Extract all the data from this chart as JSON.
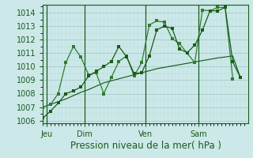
{
  "background_color": "#cce8e8",
  "grid_color_major": "#aacccc",
  "grid_color_minor": "#bbdddd",
  "line_color_dark": "#1a5c1a",
  "line_color_mid": "#2e7d32",
  "xlabel": "Pression niveau de la mer( hPa )",
  "xlabel_fontsize": 8.5,
  "ylim": [
    1005.8,
    1014.6
  ],
  "yticks": [
    1006,
    1007,
    1008,
    1009,
    1010,
    1011,
    1012,
    1013,
    1014
  ],
  "ytick_fontsize": 7,
  "xtick_labels": [
    "Jeu",
    "Dim",
    "Ven",
    "Sam"
  ],
  "xtick_positions": [
    0.5,
    5.5,
    13.5,
    20.5
  ],
  "vline_positions": [
    0.5,
    5.5,
    13.5,
    20.5
  ],
  "xlim": [
    0,
    27
  ],
  "series_smooth_x": [
    0,
    1,
    2,
    3,
    4,
    5,
    6,
    7,
    8,
    9,
    10,
    11,
    12,
    13,
    14,
    15,
    16,
    17,
    18,
    19,
    20,
    21,
    22,
    23,
    24,
    25,
    26
  ],
  "series_smooth_y": [
    1007.0,
    1007.2,
    1007.4,
    1007.6,
    1007.85,
    1008.1,
    1008.3,
    1008.55,
    1008.8,
    1008.95,
    1009.1,
    1009.25,
    1009.4,
    1009.55,
    1009.7,
    1009.85,
    1009.95,
    1010.05,
    1010.15,
    1010.25,
    1010.35,
    1010.45,
    1010.55,
    1010.65,
    1010.72,
    1010.8,
    1009.2
  ],
  "series_jagged1_x": [
    0,
    1,
    2,
    3,
    4,
    5,
    6,
    7,
    8,
    9,
    10,
    11,
    12,
    13,
    14,
    15,
    16,
    17,
    18,
    19,
    20,
    21,
    22,
    23,
    24,
    25
  ],
  "series_jagged1_y": [
    1007.0,
    1007.2,
    1008.0,
    1010.3,
    1011.5,
    1010.7,
    1009.4,
    1009.55,
    1008.0,
    1009.2,
    1010.4,
    1010.8,
    1009.3,
    1010.3,
    1013.1,
    1013.4,
    1013.3,
    1012.1,
    1011.7,
    1011.0,
    1010.3,
    1014.2,
    1014.15,
    1014.4,
    1014.4,
    1009.1
  ],
  "series_jagged2_x": [
    0,
    1,
    2,
    3,
    4,
    5,
    6,
    7,
    8,
    9,
    10,
    11,
    12,
    13,
    14,
    15,
    16,
    17,
    18,
    19,
    20,
    21,
    22,
    23,
    24,
    25,
    26
  ],
  "series_jagged2_y": [
    1006.2,
    1006.7,
    1007.3,
    1008.0,
    1008.2,
    1008.5,
    1009.3,
    1009.65,
    1010.0,
    1010.4,
    1011.5,
    1010.75,
    1009.5,
    1009.55,
    1010.8,
    1012.75,
    1013.0,
    1012.85,
    1011.3,
    1011.05,
    1011.6,
    1012.7,
    1014.15,
    1014.15,
    1014.4,
    1010.35,
    1009.2
  ]
}
